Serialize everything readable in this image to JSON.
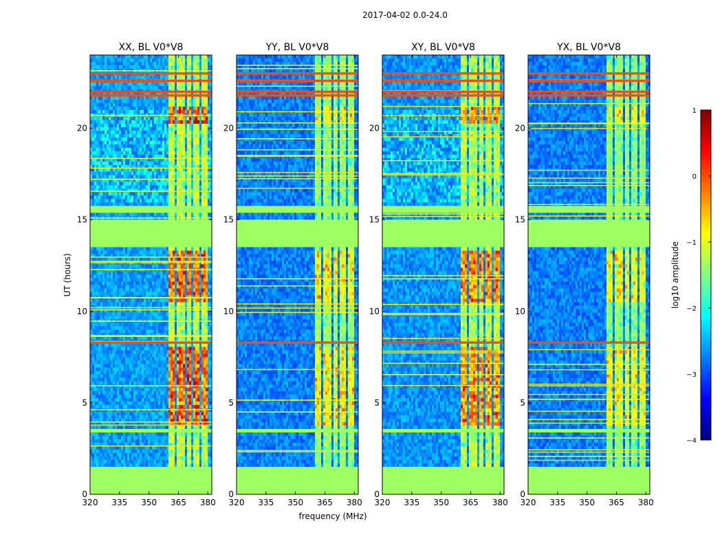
{
  "chart_data": {
    "type": "heatmap",
    "suptitle": "2017-04-02 0.0-24.0",
    "xlabel": "frequency (MHz)",
    "ylabel": "UT (hours)",
    "xlim": [
      320,
      382
    ],
    "ylim": [
      0,
      24
    ],
    "xticks": [
      "320",
      "335",
      "350",
      "365",
      "380"
    ],
    "xtick_values": [
      320,
      335,
      350,
      365,
      380
    ],
    "yticks": [
      "0",
      "5",
      "10",
      "15",
      "20"
    ],
    "ytick_values": [
      0,
      5,
      10,
      15,
      20
    ],
    "panels": [
      {
        "title": "XX, BL V0*V8",
        "strength": 1.0,
        "base": -2.6
      },
      {
        "title": "YY, BL V0*V8",
        "strength": 0.55,
        "base": -2.75
      },
      {
        "title": "XY, BL V0*V8",
        "strength": 0.85,
        "base": -2.65
      },
      {
        "title": "YX, BL V0*V8",
        "strength": 0.45,
        "base": -2.75
      }
    ],
    "flagged_time_ranges_hours": [
      [
        0.0,
        1.55
      ],
      [
        13.5,
        15.05
      ],
      [
        3.35,
        3.65
      ],
      [
        15.4,
        15.8
      ]
    ],
    "rfi_freq_bands_mhz": [
      [
        359.5,
        363.5
      ],
      [
        364.5,
        368.0
      ],
      [
        369.0,
        372.0
      ],
      [
        373.0,
        376.0
      ],
      [
        377.0,
        380.0
      ]
    ],
    "bright_time_ranges_hours": [
      [
        20.2,
        21.2
      ],
      [
        3.8,
        8.0
      ],
      [
        10.5,
        13.3
      ]
    ],
    "hot_time_lines_hours": [
      8.3,
      21.8,
      22.0,
      22.6,
      23.0
    ],
    "colorbar": {
      "label": "log10 amplitude",
      "min": -4,
      "max": 1,
      "ticks": [
        "1",
        "0",
        "−1",
        "−2",
        "−3",
        "−4"
      ],
      "tick_values": [
        1,
        0,
        -1,
        -2,
        -3,
        -4
      ]
    }
  }
}
